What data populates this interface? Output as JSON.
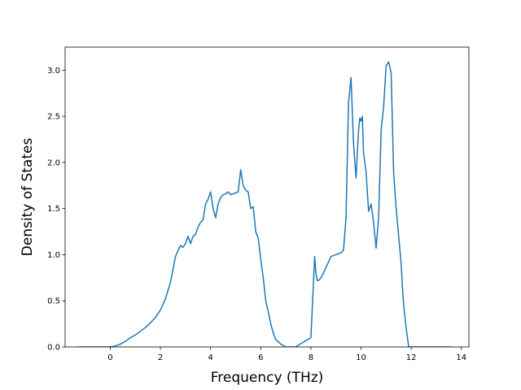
{
  "chart_data": {
    "type": "line",
    "title": "",
    "xlabel": "Frequency (THz)",
    "ylabel": "Density of States",
    "xlim": [
      -1.8,
      14.3
    ],
    "ylim": [
      0.0,
      3.25
    ],
    "xticks": [
      0,
      2,
      4,
      6,
      8,
      10,
      12,
      14
    ],
    "yticks": [
      0.0,
      0.5,
      1.0,
      1.5,
      2.0,
      2.5,
      3.0
    ],
    "xtick_labels": [
      "0",
      "2",
      "4",
      "6",
      "8",
      "10",
      "12",
      "14"
    ],
    "ytick_labels": [
      "0.0",
      "0.5",
      "1.0",
      "1.5",
      "2.0",
      "2.5",
      "3.0"
    ],
    "grid": false,
    "legend": "none",
    "line_color": "#1f77b4",
    "series": [
      {
        "x": [
          -1.25,
          -0.5,
          0.0,
          0.2,
          0.4,
          0.6,
          0.8,
          1.0,
          1.2,
          1.4,
          1.6,
          1.8,
          2.0,
          2.2,
          2.4,
          2.6,
          2.8,
          2.9,
          3.0,
          3.1,
          3.2,
          3.3,
          3.4,
          3.5,
          3.6,
          3.7,
          3.8,
          3.9,
          4.0,
          4.1,
          4.2,
          4.3,
          4.4,
          4.5,
          4.6,
          4.7,
          4.8,
          4.9,
          5.0,
          5.1,
          5.2,
          5.3,
          5.4,
          5.5,
          5.6,
          5.7,
          5.8,
          5.9,
          6.0,
          6.1,
          6.2,
          6.3,
          6.4,
          6.5,
          6.6,
          6.8,
          7.0,
          7.2,
          7.4,
          7.5,
          8.0,
          8.15,
          8.2,
          8.25,
          8.3,
          8.4,
          8.5,
          8.6,
          8.8,
          9.0,
          9.2,
          9.3,
          9.4,
          9.5,
          9.6,
          9.7,
          9.8,
          9.9,
          9.95,
          10.0,
          10.05,
          10.1,
          10.2,
          10.3,
          10.4,
          10.5,
          10.6,
          10.7,
          10.8,
          10.9,
          11.0,
          11.1,
          11.2,
          11.3,
          11.4,
          11.5,
          11.6,
          11.65,
          11.7,
          11.8,
          11.9,
          12.0,
          12.1,
          12.2,
          12.3,
          12.4,
          12.8,
          13.2,
          13.6
        ],
        "y": [
          0.0,
          0.0,
          0.0,
          0.01,
          0.03,
          0.06,
          0.1,
          0.13,
          0.17,
          0.21,
          0.26,
          0.32,
          0.4,
          0.52,
          0.7,
          0.98,
          1.1,
          1.08,
          1.12,
          1.2,
          1.12,
          1.2,
          1.22,
          1.3,
          1.35,
          1.38,
          1.55,
          1.6,
          1.68,
          1.5,
          1.4,
          1.55,
          1.62,
          1.65,
          1.66,
          1.68,
          1.65,
          1.66,
          1.67,
          1.68,
          1.92,
          1.75,
          1.7,
          1.68,
          1.5,
          1.52,
          1.25,
          1.18,
          0.95,
          0.75,
          0.5,
          0.38,
          0.25,
          0.15,
          0.08,
          0.03,
          0.0,
          0.0,
          0.0,
          0.02,
          0.1,
          0.98,
          0.8,
          0.72,
          0.72,
          0.75,
          0.8,
          0.86,
          0.98,
          1.0,
          1.02,
          1.05,
          1.4,
          2.65,
          2.92,
          2.2,
          1.83,
          2.35,
          2.48,
          2.45,
          2.5,
          2.1,
          1.9,
          1.47,
          1.55,
          1.35,
          1.07,
          1.4,
          2.35,
          2.6,
          3.05,
          3.09,
          2.97,
          1.88,
          1.5,
          1.2,
          0.9,
          0.65,
          0.45,
          0.2,
          0.0,
          0.0,
          0.0,
          0.0,
          0.0,
          0.0,
          0.0,
          0.0,
          0.0
        ]
      }
    ]
  }
}
